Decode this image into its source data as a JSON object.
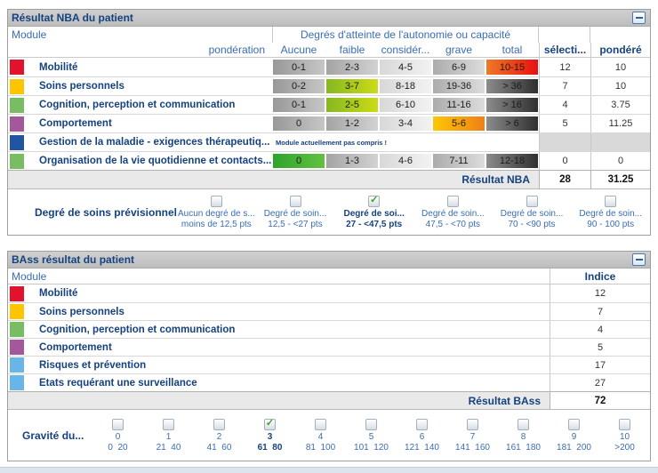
{
  "colors": {
    "navy_text": "#15427f",
    "blue_text": "#3a6db3",
    "titlebar": "#c6c6c6",
    "selected_red": "#e90f0f",
    "selected_yellowgreen": "#ccdb17",
    "selected_orange": "#ef7f17",
    "selected_green": "#2ca42c"
  },
  "nba": {
    "title": "Résultat NBA du patient",
    "module_header": "Module",
    "degrees_header": "Degrés d'atteinte de l'autonomie ou capacité",
    "ponderation_header": "pondération",
    "severity_headers": [
      "Aucune",
      "faible",
      "considér...",
      "grave",
      "total"
    ],
    "selected_header": "sélecti...",
    "weighted_header": "pondéré",
    "rows": [
      {
        "name": "Mobilité",
        "color": "#e2122d",
        "cells": [
          "0-1",
          "2-3",
          "4-5",
          "6-9",
          "10-15"
        ],
        "selected_index": 4,
        "selected": "12",
        "weighted": "10"
      },
      {
        "name": "Soins personnels",
        "color": "#fdc400",
        "cells": [
          "0-2",
          "3-7",
          "8-18",
          "19-36",
          "> 36"
        ],
        "selected_index": 1,
        "selected": "7",
        "weighted": "10"
      },
      {
        "name": "Cognition, perception et communication",
        "color": "#78bd62",
        "cells": [
          "0-1",
          "2-5",
          "6-10",
          "11-16",
          "> 16"
        ],
        "selected_index": 1,
        "selected": "4",
        "weighted": "3.75"
      },
      {
        "name": "Comportement",
        "color": "#a4589c",
        "cells": [
          "0",
          "1-2",
          "3-4",
          "5-6",
          "> 6"
        ],
        "selected_index": 3,
        "selected": "5",
        "weighted": "11.25"
      },
      {
        "name": "Gestion de la maladie - exigences thérapeutiq...",
        "color": "#2155a4",
        "note": "Module actuellement pas compris !",
        "selected": "",
        "weighted": ""
      },
      {
        "name": "Organisation de la vie quotidienne et contacts...",
        "color": "#78bd62",
        "cells": [
          "0",
          "1-3",
          "4-6",
          "7-11",
          "12-18"
        ],
        "selected_index": 0,
        "selected": "0",
        "weighted": "0"
      }
    ],
    "result_label": "Résultat NBA",
    "result_selected": "28",
    "result_weighted": "31.25",
    "care_degree": {
      "label": "Degré de soins prévisionnel",
      "options": [
        {
          "line1": "Aucun degré de s...",
          "line2": "moins de 12,5 pts",
          "checked": false
        },
        {
          "line1": "Degré de soin...",
          "line2": "12,5 - <27 pts",
          "checked": false
        },
        {
          "line1": "Degré de soi...",
          "line2": "27 - <47,5 pts",
          "checked": true
        },
        {
          "line1": "Degré de soin...",
          "line2": "47,5 - <70 pts",
          "checked": false
        },
        {
          "line1": "Degré de soin...",
          "line2": "70 - <90 pts",
          "checked": false
        },
        {
          "line1": "Degré de soin...",
          "line2": "90 - 100 pts",
          "checked": false
        }
      ]
    }
  },
  "bass": {
    "title": "BAss résultat du patient",
    "module_header": "Module",
    "indice_header": "Indice",
    "rows": [
      {
        "name": "Mobilité",
        "color": "#e2122d",
        "indice": "12"
      },
      {
        "name": "Soins personnels",
        "color": "#fdc400",
        "indice": "7"
      },
      {
        "name": "Cognition, perception et communication",
        "color": "#78bd62",
        "indice": "4"
      },
      {
        "name": "Comportement",
        "color": "#a4589c",
        "indice": "5"
      },
      {
        "name": "Risques et prévention",
        "color": "#68b6e8",
        "indice": "17"
      },
      {
        "name": "Etats requérant une surveillance",
        "color": "#68b6e8",
        "indice": "27"
      }
    ],
    "result_label": "Résultat BAss",
    "result_value": "72",
    "gravity": {
      "label": "Gravité du...",
      "options": [
        {
          "num": "0",
          "range": "0  20",
          "checked": false
        },
        {
          "num": "1",
          "range": "21  40",
          "checked": false
        },
        {
          "num": "2",
          "range": "41  60",
          "checked": false
        },
        {
          "num": "3",
          "range": "61  80",
          "checked": true
        },
        {
          "num": "4",
          "range": "81  100",
          "checked": false
        },
        {
          "num": "5",
          "range": "101  120",
          "checked": false
        },
        {
          "num": "6",
          "range": "121  140",
          "checked": false
        },
        {
          "num": "7",
          "range": "141  160",
          "checked": false
        },
        {
          "num": "8",
          "range": "161  180",
          "checked": false
        },
        {
          "num": "9",
          "range": "181  200",
          "checked": false
        },
        {
          "num": "10",
          "range": ">200",
          "checked": false
        }
      ]
    }
  }
}
